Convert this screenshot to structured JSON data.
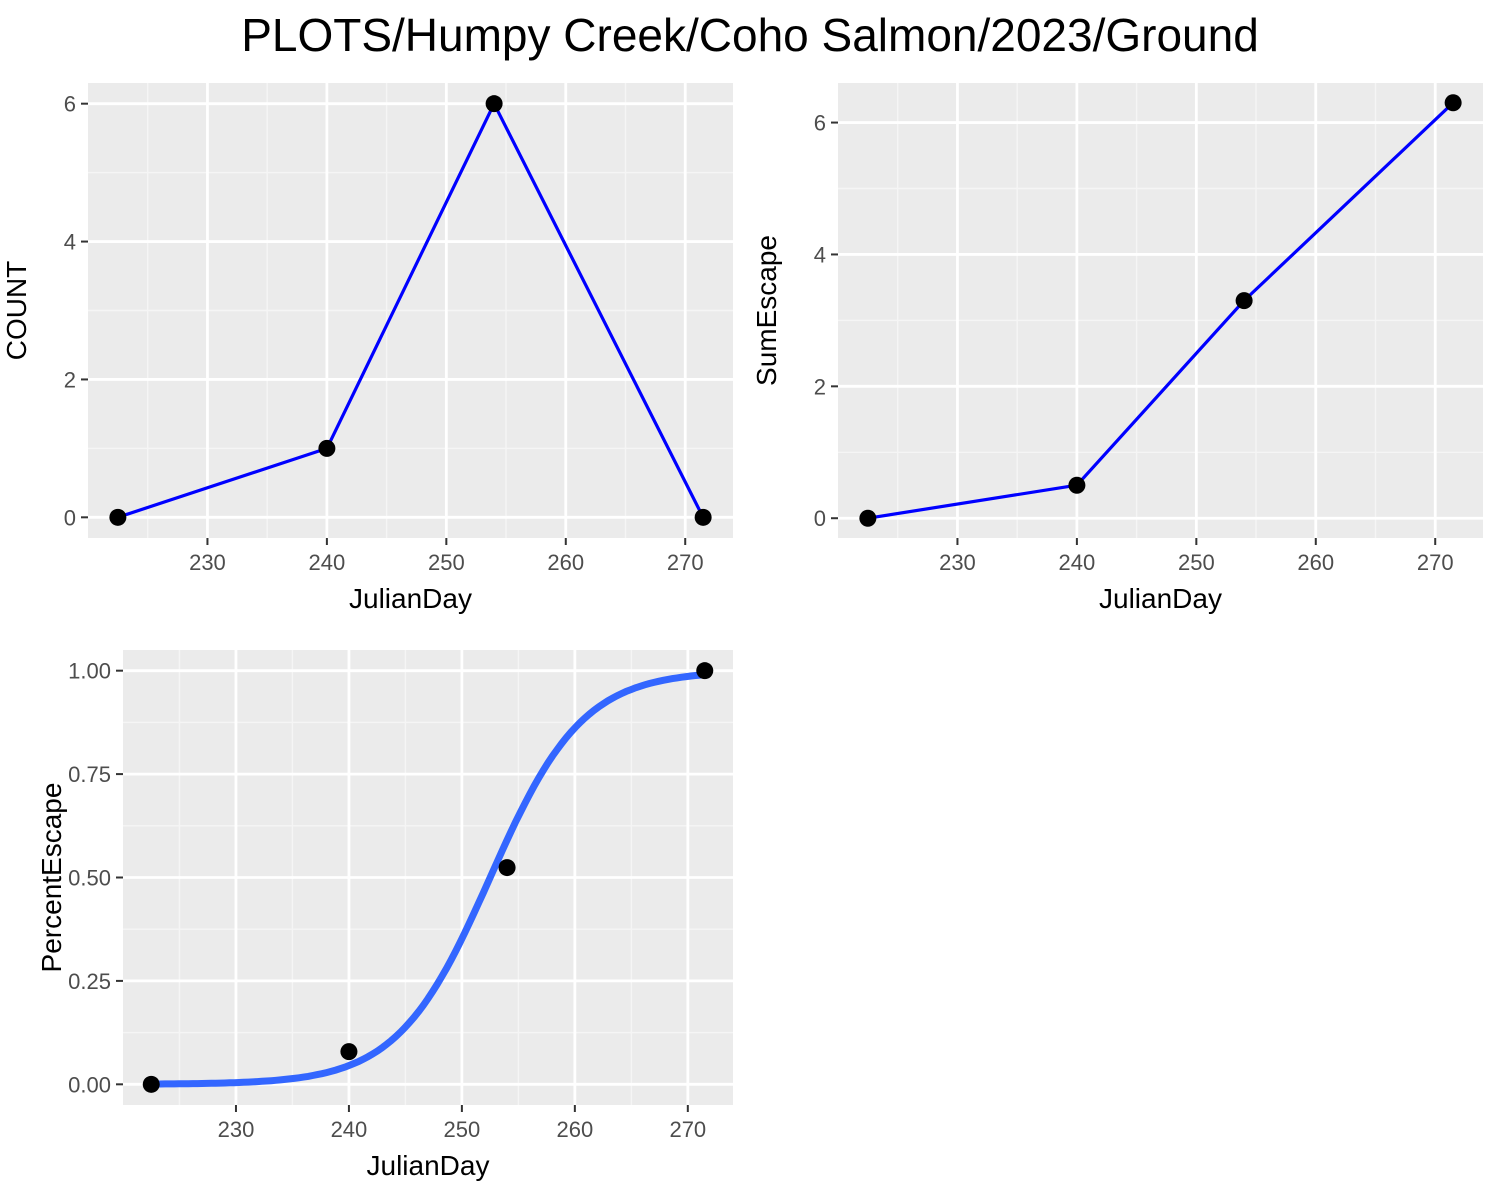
{
  "title": "PLOTS/Humpy Creek/Coho Salmon/2023/Ground",
  "colors": {
    "panel_bg": "#EBEBEB",
    "grid_major": "#FFFFFF",
    "grid_minor": "#F5F5F5",
    "line_blue": "#0000FF",
    "fit_blue": "#3366FF",
    "point": "#000000",
    "tick_text": "#4D4D4D",
    "tick_mark": "#333333"
  },
  "chart_data": [
    {
      "type": "line",
      "xlabel": "JulianDay",
      "ylabel": "COUNT",
      "x": [
        222.5,
        240,
        254,
        271.5
      ],
      "y": [
        0,
        1,
        6,
        0
      ],
      "xlim": [
        220.0,
        274.0
      ],
      "ylim": [
        -0.3,
        6.3
      ],
      "xticks": [
        230,
        240,
        250,
        260,
        270
      ],
      "xtick_labels": [
        "230",
        "240",
        "250",
        "260",
        "270"
      ],
      "yticks": [
        0,
        2,
        4,
        6
      ],
      "ytick_labels": [
        "0",
        "2",
        "4",
        "6"
      ],
      "grid": true
    },
    {
      "type": "line",
      "xlabel": "JulianDay",
      "ylabel": "SumEscape",
      "x": [
        222.5,
        240,
        254,
        271.5
      ],
      "y": [
        0,
        0.5,
        3.3,
        6.3
      ],
      "xlim": [
        220.0,
        274.0
      ],
      "ylim": [
        -0.3,
        6.6
      ],
      "xticks": [
        230,
        240,
        250,
        260,
        270
      ],
      "xtick_labels": [
        "230",
        "240",
        "250",
        "260",
        "270"
      ],
      "yticks": [
        0,
        2,
        4,
        6
      ],
      "ytick_labels": [
        "0",
        "2",
        "4",
        "6"
      ],
      "grid": true
    },
    {
      "type": "scatter",
      "xlabel": "JulianDay",
      "ylabel": "PercentEscape",
      "x": [
        222.5,
        240,
        254,
        271.5
      ],
      "y": [
        0,
        0.079,
        0.524,
        1.0
      ],
      "fit": {
        "type": "logistic",
        "midpoint": 252.5,
        "scale": 4.1,
        "x_range": [
          222.5,
          271.5
        ]
      },
      "xlim": [
        220.0,
        274.0
      ],
      "ylim": [
        -0.05,
        1.05
      ],
      "xticks": [
        230,
        240,
        250,
        260,
        270
      ],
      "xtick_labels": [
        "230",
        "240",
        "250",
        "260",
        "270"
      ],
      "yticks": [
        0,
        0.25,
        0.5,
        0.75,
        1.0
      ],
      "ytick_labels": [
        "0.00",
        "0.25",
        "0.50",
        "0.75",
        "1.00"
      ],
      "grid": true
    }
  ]
}
